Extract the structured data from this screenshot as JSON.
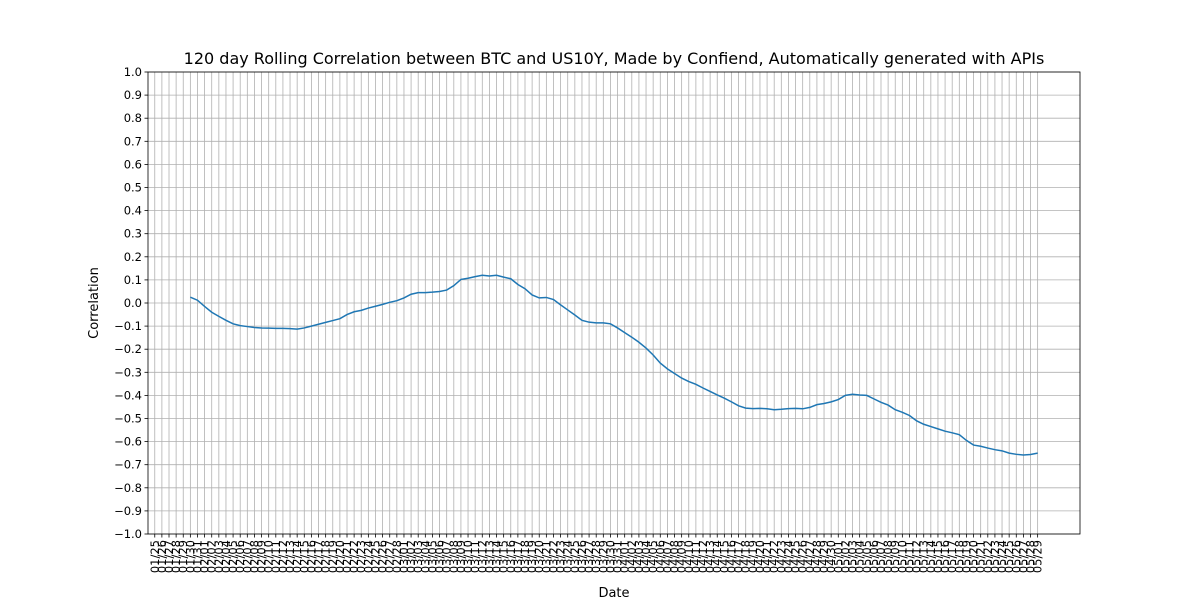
{
  "chart_data": {
    "type": "line",
    "title": "120 day Rolling Correlation between BTC and US10Y, Made by Confiend, Automatically generated with APIs",
    "xlabel": "Date",
    "ylabel": "Correlation",
    "categories": [
      "01/25",
      "01/26",
      "01/27",
      "01/28",
      "01/29",
      "01/30",
      "01/31",
      "02/01",
      "02/02",
      "02/03",
      "02/04",
      "02/05",
      "02/06",
      "02/07",
      "02/08",
      "02/09",
      "02/10",
      "02/11",
      "02/12",
      "02/13",
      "02/14",
      "02/15",
      "02/16",
      "02/17",
      "02/18",
      "02/19",
      "02/20",
      "02/21",
      "02/22",
      "02/23",
      "02/24",
      "02/25",
      "02/26",
      "02/27",
      "02/28",
      "03/01",
      "03/02",
      "03/03",
      "03/04",
      "03/05",
      "03/06",
      "03/07",
      "03/08",
      "03/09",
      "03/10",
      "03/11",
      "03/12",
      "03/13",
      "03/14",
      "03/15",
      "03/16",
      "03/17",
      "03/18",
      "03/19",
      "03/20",
      "03/21",
      "03/22",
      "03/23",
      "03/24",
      "03/25",
      "03/26",
      "03/27",
      "03/28",
      "03/29",
      "03/30",
      "03/31",
      "04/01",
      "04/02",
      "04/03",
      "04/04",
      "04/05",
      "04/06",
      "04/07",
      "04/08",
      "04/09",
      "04/10",
      "04/11",
      "04/12",
      "04/13",
      "04/14",
      "04/15",
      "04/16",
      "04/17",
      "04/18",
      "04/19",
      "04/20",
      "04/21",
      "04/22",
      "04/23",
      "04/24",
      "04/25",
      "04/26",
      "04/27",
      "04/28",
      "04/29",
      "04/30",
      "05/01",
      "05/02",
      "05/03",
      "05/04",
      "05/05",
      "05/06",
      "05/07",
      "05/08",
      "05/09",
      "05/10",
      "05/11",
      "05/12",
      "05/13",
      "05/14",
      "05/15",
      "05/16",
      "05/17",
      "05/18",
      "05/19",
      "05/20",
      "05/21",
      "05/22",
      "05/23",
      "05/24",
      "05/25",
      "05/26",
      "05/27",
      "05/28",
      "05/29"
    ],
    "values": [
      null,
      null,
      null,
      null,
      null,
      0.025,
      0.012,
      -0.015,
      -0.04,
      -0.058,
      -0.075,
      -0.09,
      -0.098,
      -0.102,
      -0.106,
      -0.108,
      -0.109,
      -0.11,
      -0.11,
      -0.111,
      -0.113,
      -0.108,
      -0.1,
      -0.092,
      -0.084,
      -0.076,
      -0.068,
      -0.05,
      -0.038,
      -0.032,
      -0.022,
      -0.014,
      -0.006,
      0.003,
      0.01,
      0.022,
      0.038,
      0.045,
      0.045,
      0.047,
      0.05,
      0.056,
      0.075,
      0.102,
      0.107,
      0.114,
      0.12,
      0.117,
      0.12,
      0.112,
      0.105,
      0.08,
      0.062,
      0.035,
      0.022,
      0.024,
      0.015,
      -0.008,
      -0.03,
      -0.052,
      -0.075,
      -0.083,
      -0.086,
      -0.086,
      -0.09,
      -0.108,
      -0.128,
      -0.148,
      -0.17,
      -0.195,
      -0.225,
      -0.26,
      -0.285,
      -0.305,
      -0.325,
      -0.34,
      -0.352,
      -0.368,
      -0.383,
      -0.398,
      -0.412,
      -0.428,
      -0.445,
      -0.455,
      -0.457,
      -0.456,
      -0.458,
      -0.462,
      -0.46,
      -0.457,
      -0.456,
      -0.458,
      -0.452,
      -0.44,
      -0.435,
      -0.428,
      -0.418,
      -0.4,
      -0.395,
      -0.398,
      -0.4,
      -0.415,
      -0.43,
      -0.442,
      -0.462,
      -0.473,
      -0.487,
      -0.51,
      -0.525,
      -0.535,
      -0.545,
      -0.555,
      -0.562,
      -0.57,
      -0.595,
      -0.615,
      -0.62,
      -0.628,
      -0.635,
      -0.64,
      -0.65,
      -0.655,
      -0.658,
      -0.656,
      -0.65
    ],
    "color": "#1f77b4",
    "ylim": [
      -1,
      1
    ],
    "yticks": [
      {
        "value": -1,
        "label": "−1.0"
      },
      {
        "value": -0.9,
        "label": "−0.9"
      },
      {
        "value": -0.8,
        "label": "−0.8"
      },
      {
        "value": -0.7,
        "label": "−0.7"
      },
      {
        "value": -0.6,
        "label": "−0.6"
      },
      {
        "value": -0.5,
        "label": "−0.5"
      },
      {
        "value": -0.4,
        "label": "−0.4"
      },
      {
        "value": -0.3,
        "label": "−0.3"
      },
      {
        "value": -0.2,
        "label": "−0.2"
      },
      {
        "value": -0.1,
        "label": "−0.1"
      },
      {
        "value": 0,
        "label": "0.0"
      },
      {
        "value": 0.1,
        "label": "0.1"
      },
      {
        "value": 0.2,
        "label": "0.2"
      },
      {
        "value": 0.3,
        "label": "0.3"
      },
      {
        "value": 0.4,
        "label": "0.4"
      },
      {
        "value": 0.5,
        "label": "0.5"
      },
      {
        "value": 0.6,
        "label": "0.6"
      },
      {
        "value": 0.7,
        "label": "0.7"
      },
      {
        "value": 0.8,
        "label": "0.8"
      },
      {
        "value": 0.9,
        "label": "0.9"
      },
      {
        "value": 1,
        "label": "1.0"
      }
    ],
    "grid": true
  }
}
